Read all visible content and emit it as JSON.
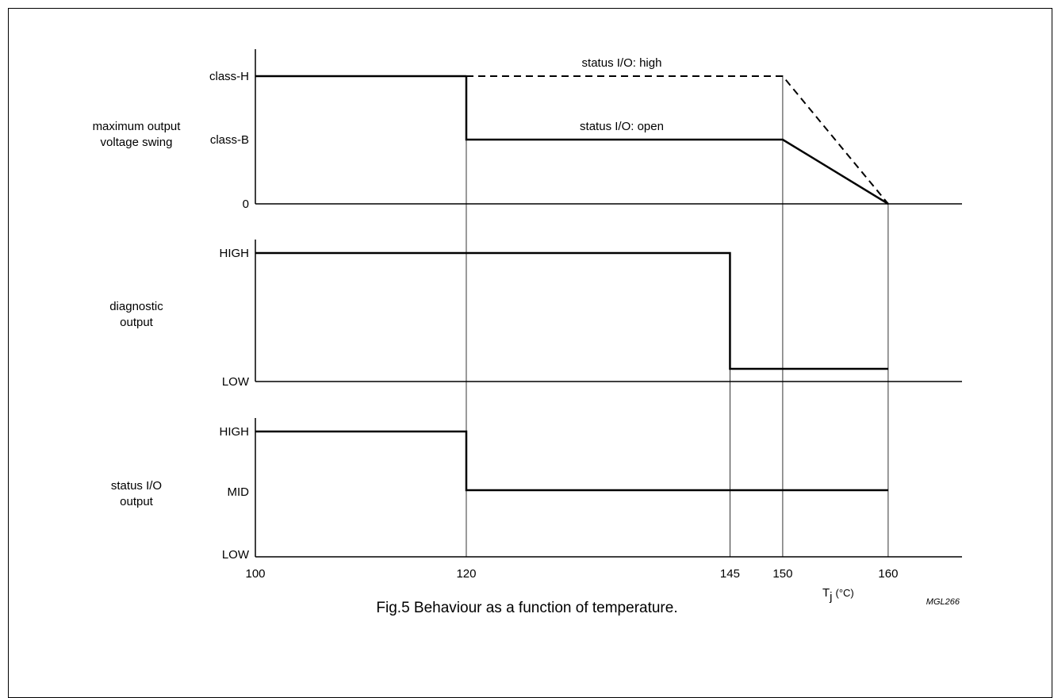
{
  "chart_data": [
    {
      "type": "line",
      "panel": "maximum output voltage swing",
      "ylabel": [
        "maximum output",
        "voltage swing"
      ],
      "y_levels": [
        "0",
        "class-B",
        "class-H"
      ],
      "series": [
        {
          "name": "status I/O: high",
          "line": "solid then dashed",
          "points": [
            [
              100,
              "class-H"
            ],
            [
              120,
              "class-H"
            ],
            [
              150,
              "class-H"
            ],
            [
              160,
              "0"
            ]
          ]
        },
        {
          "name": "status I/O: open",
          "line": "solid",
          "points": [
            [
              100,
              "class-H"
            ],
            [
              120,
              "class-H"
            ],
            [
              120,
              "class-B"
            ],
            [
              150,
              "class-B"
            ],
            [
              160,
              "0"
            ]
          ]
        }
      ]
    },
    {
      "type": "line",
      "panel": "diagnostic output",
      "ylabel": [
        "diagnostic",
        "output"
      ],
      "y_levels": [
        "LOW",
        "HIGH"
      ],
      "series": [
        {
          "points": [
            [
              100,
              "HIGH"
            ],
            [
              145,
              "HIGH"
            ],
            [
              145,
              "LOW"
            ],
            [
              160,
              "LOW"
            ]
          ]
        }
      ]
    },
    {
      "type": "line",
      "panel": "status I/O output",
      "ylabel": [
        "status I/O",
        "output"
      ],
      "y_levels": [
        "LOW",
        "MID",
        "HIGH"
      ],
      "series": [
        {
          "points": [
            [
              100,
              "HIGH"
            ],
            [
              120,
              "HIGH"
            ],
            [
              120,
              "MID"
            ],
            [
              160,
              "MID"
            ]
          ]
        }
      ]
    }
  ],
  "x_axis": {
    "ticks": [
      "100",
      "120",
      "145",
      "150",
      "160"
    ],
    "tick_values": [
      100,
      120,
      145,
      150,
      160
    ],
    "label_main": "T",
    "label_sub": "j",
    "label_unit": "(°C)",
    "xlim": [
      100,
      167
    ]
  },
  "code": "MGL266",
  "caption": "Fig.5  Behaviour as a function of temperature."
}
